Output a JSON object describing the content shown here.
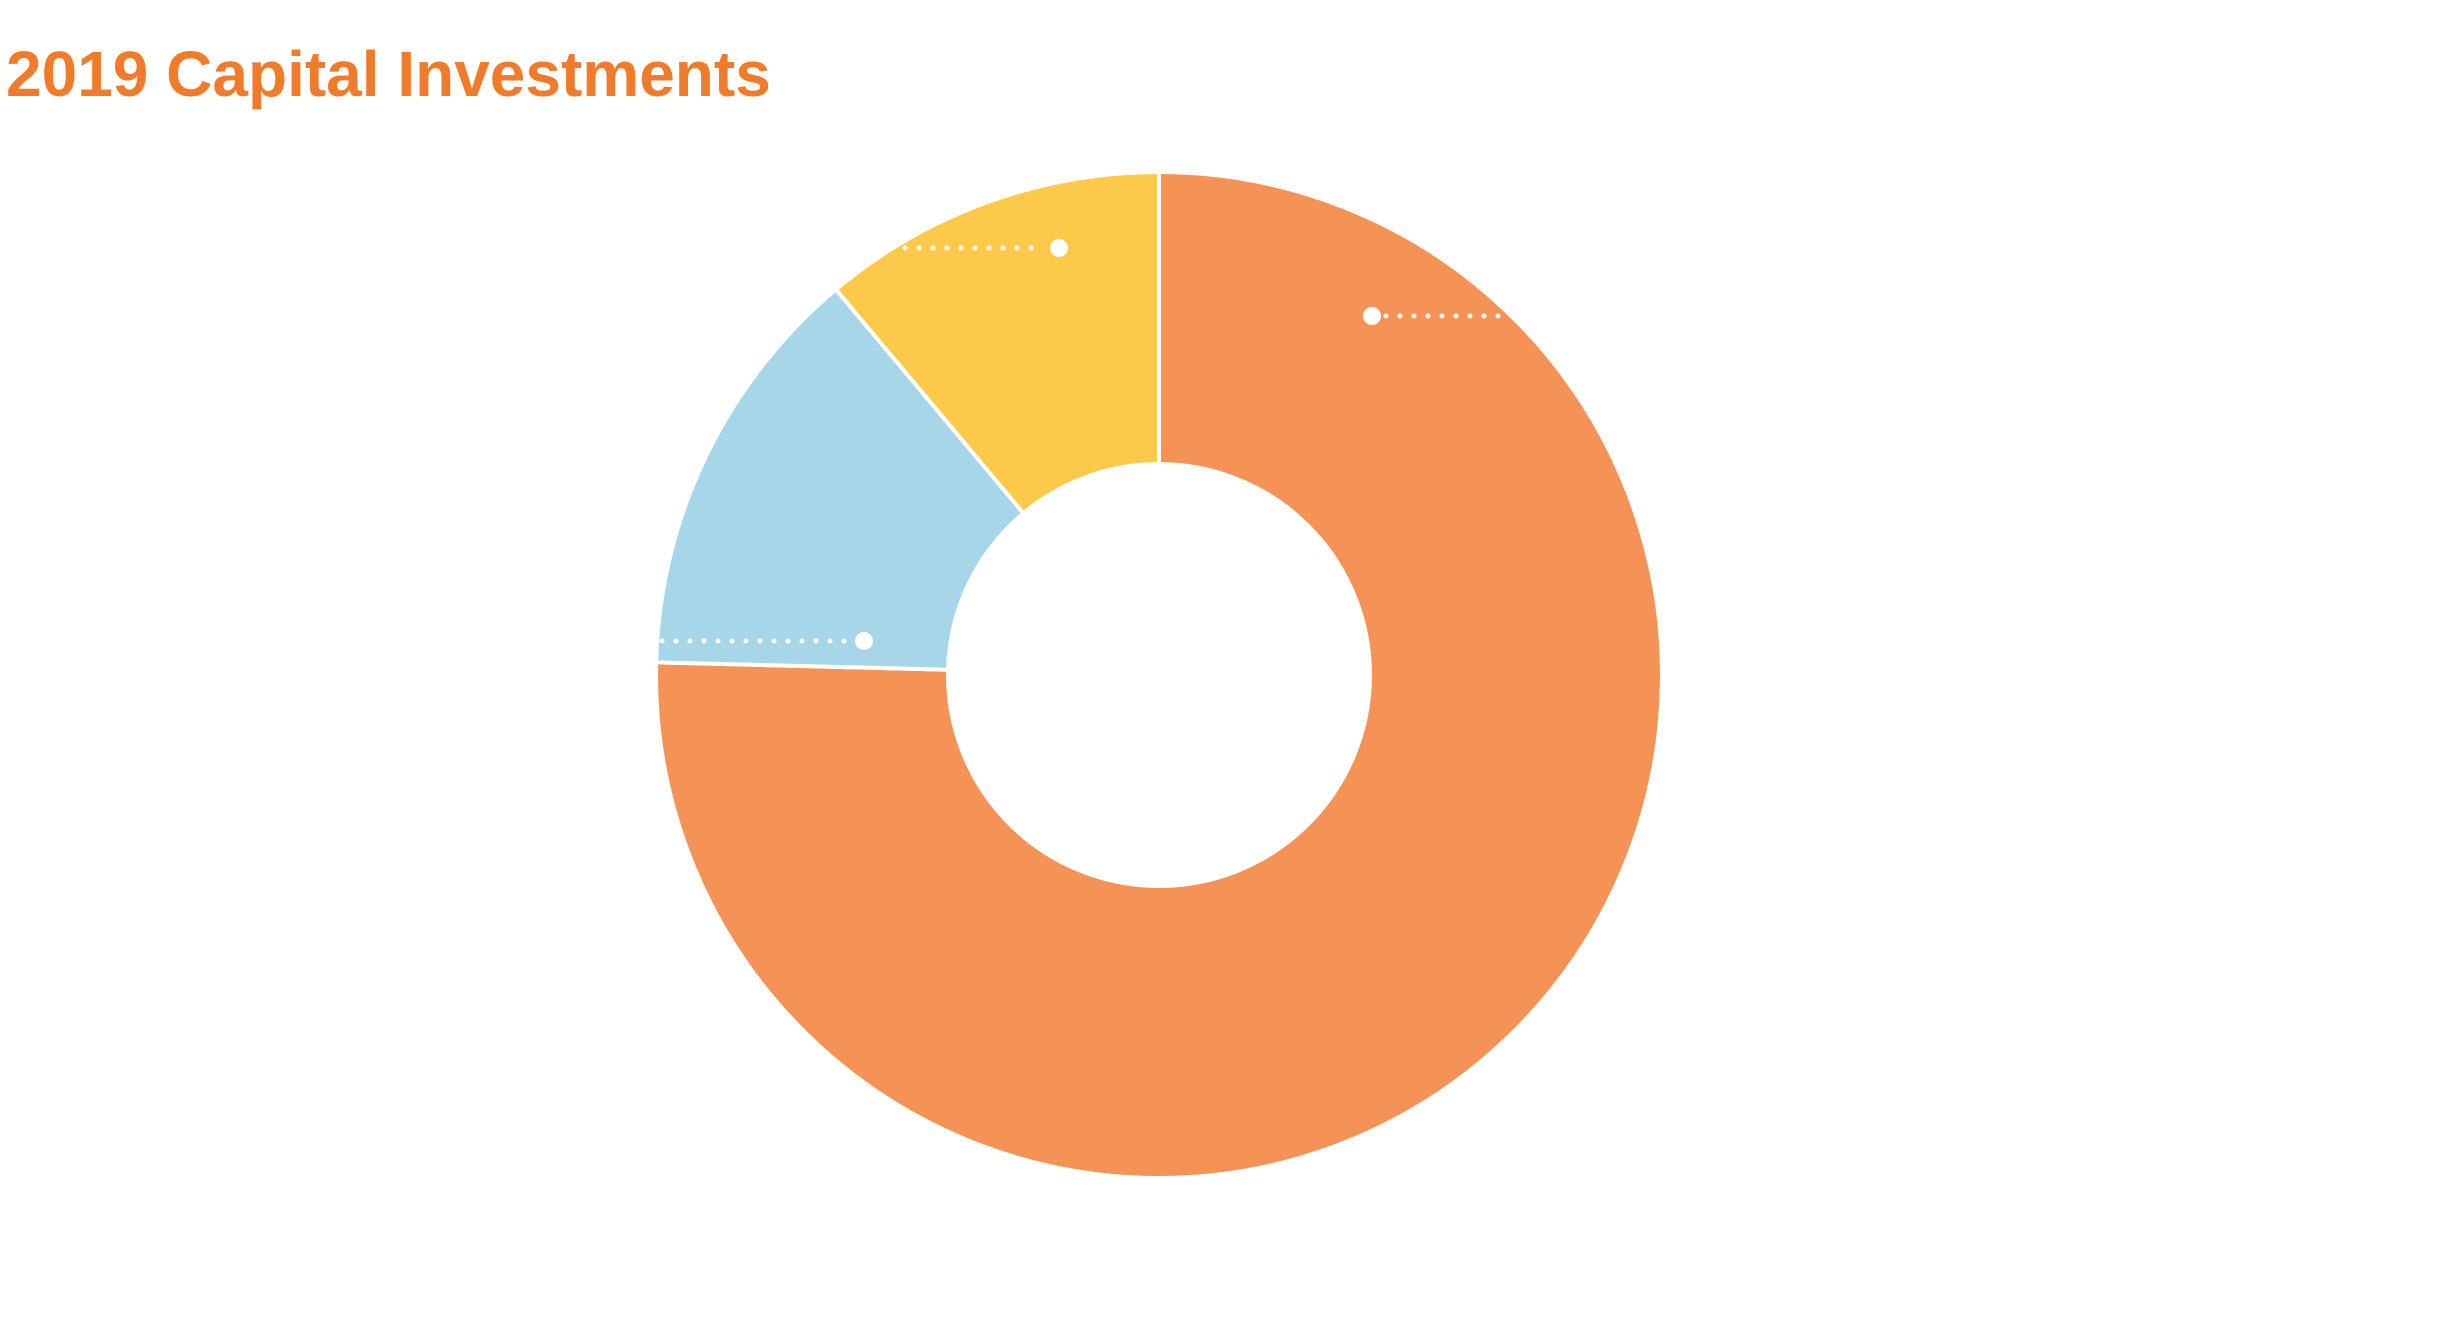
{
  "chart_data": {
    "type": "pie",
    "title": "2019 Capital Investments",
    "values": [
      75.4,
      13.5,
      11.1
    ],
    "colors": [
      "#f59255",
      "#a6d6e7",
      "#fdc94a"
    ],
    "start_angle": 0,
    "direction": "clockwise",
    "donut": true
  }
}
